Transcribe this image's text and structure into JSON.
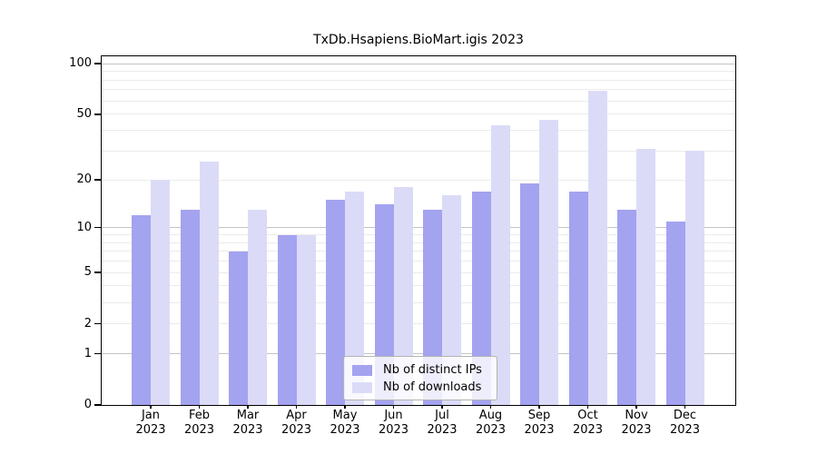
{
  "title": "TxDb.Hsapiens.BioMart.igis 2023",
  "chart_data": {
    "type": "bar",
    "title": "TxDb.Hsapiens.BioMart.igis 2023",
    "categories": [
      "Jan",
      "Feb",
      "Mar",
      "Apr",
      "May",
      "Jun",
      "Jul",
      "Aug",
      "Sep",
      "Oct",
      "Nov",
      "Dec"
    ],
    "year": "2023",
    "series": [
      {
        "name": "Nb of distinct IPs",
        "color": "#a3a3f0",
        "values": [
          12,
          13,
          7,
          9,
          15,
          14,
          13,
          17,
          19,
          17,
          13,
          11
        ]
      },
      {
        "name": "Nb of downloads",
        "color": "#dbdbf8",
        "values": [
          20,
          26,
          13,
          9,
          17,
          18,
          16,
          43,
          46,
          69,
          31,
          30
        ]
      }
    ],
    "yscale": "log10(1+x)",
    "ylim": [
      0,
      100
    ],
    "ytick_labels": [
      100,
      50,
      20,
      10,
      5,
      2,
      1,
      0
    ],
    "grid_values": [
      1,
      2,
      3,
      4,
      5,
      6,
      7,
      8,
      9,
      10,
      20,
      30,
      40,
      50,
      60,
      70,
      80,
      90,
      100
    ],
    "major_grid_values": [
      1,
      10,
      100
    ],
    "legend": {
      "position": "bottom-center",
      "entries": [
        "Nb of distinct IPs",
        "Nb of downloads"
      ]
    },
    "colors": {
      "grid_minor": "#ebebeb",
      "grid_major": "#c4c4c4",
      "axis": "#000000",
      "background": "#ffffff"
    }
  }
}
